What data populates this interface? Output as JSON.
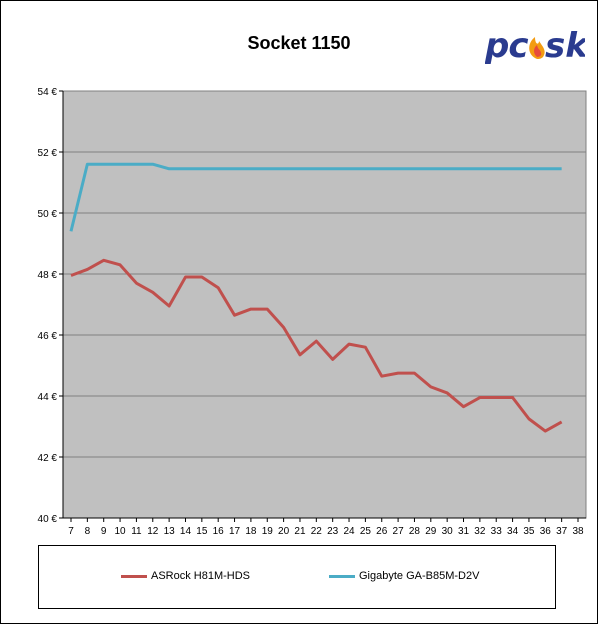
{
  "chart_data": {
    "type": "line",
    "title": "Socket 1150",
    "x": [
      7,
      8,
      9,
      10,
      11,
      12,
      13,
      14,
      15,
      16,
      17,
      18,
      19,
      20,
      21,
      22,
      23,
      24,
      25,
      26,
      27,
      28,
      29,
      30,
      31,
      32,
      33,
      34,
      35,
      36,
      37
    ],
    "x_ticks": [
      "7",
      "8",
      "9",
      "10",
      "11",
      "12",
      "13",
      "14",
      "15",
      "16",
      "17",
      "18",
      "19",
      "20",
      "21",
      "22",
      "23",
      "24",
      "25",
      "26",
      "27",
      "28",
      "29",
      "30",
      "31",
      "32",
      "33",
      "34",
      "35",
      "36",
      "37",
      "38"
    ],
    "xlim": [
      7,
      38
    ],
    "ylim": [
      40,
      54
    ],
    "y_ticks": [
      "40 €",
      "42 €",
      "44 €",
      "46 €",
      "48 €",
      "50 €",
      "52 €",
      "54 €"
    ],
    "y_tick_values": [
      40,
      42,
      44,
      46,
      48,
      50,
      52,
      54
    ],
    "grid": true,
    "legend_position": "bottom",
    "series": [
      {
        "name": "ASRock H81M-HDS",
        "color": "#c0504d",
        "values": [
          47.95,
          48.15,
          48.45,
          48.3,
          47.7,
          47.4,
          46.95,
          47.9,
          47.9,
          47.55,
          46.65,
          46.85,
          46.85,
          46.25,
          45.35,
          45.8,
          45.2,
          45.7,
          45.6,
          44.65,
          44.75,
          44.75,
          44.3,
          44.1,
          43.65,
          43.95,
          43.95,
          43.95,
          43.25,
          42.85,
          43.15
        ]
      },
      {
        "name": "Gigabyte GA-B85M-D2V",
        "color": "#4bacc6",
        "values": [
          49.4,
          51.6,
          51.6,
          51.6,
          51.6,
          51.6,
          51.45,
          51.45,
          51.45,
          51.45,
          51.45,
          51.45,
          51.45,
          51.45,
          51.45,
          51.45,
          51.45,
          51.45,
          51.45,
          51.45,
          51.45,
          51.45,
          51.45,
          51.45,
          51.45,
          51.45,
          51.45,
          51.45,
          51.45,
          51.45,
          51.45
        ]
      }
    ]
  },
  "logo": {
    "text": "pcesk"
  },
  "colors": {
    "plot_bg": "#c0c0c0",
    "grid": "#808080"
  }
}
